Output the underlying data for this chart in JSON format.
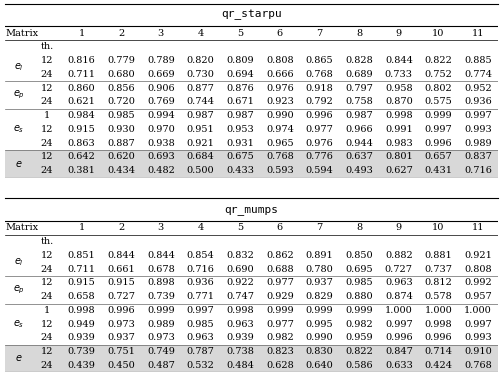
{
  "title1": "qr_starpu",
  "title2": "qr_mumps",
  "col_headers": [
    "Matrix",
    "1",
    "2",
    "3",
    "4",
    "5",
    "6",
    "7",
    "8",
    "9",
    "10",
    "11"
  ],
  "data1": [
    [
      0.816,
      0.779,
      0.789,
      0.82,
      0.809,
      0.808,
      0.865,
      0.828,
      0.844,
      0.822,
      0.885
    ],
    [
      0.711,
      0.68,
      0.669,
      0.73,
      0.694,
      0.666,
      0.768,
      0.689,
      0.733,
      0.752,
      0.774
    ],
    [
      0.86,
      0.856,
      0.906,
      0.877,
      0.876,
      0.976,
      0.918,
      0.797,
      0.958,
      0.802,
      0.952
    ],
    [
      0.621,
      0.72,
      0.769,
      0.744,
      0.671,
      0.923,
      0.792,
      0.758,
      0.87,
      0.575,
      0.936
    ],
    [
      0.984,
      0.985,
      0.994,
      0.987,
      0.987,
      0.99,
      0.996,
      0.987,
      0.998,
      0.999,
      0.997
    ],
    [
      0.915,
      0.93,
      0.97,
      0.951,
      0.953,
      0.974,
      0.977,
      0.966,
      0.991,
      0.997,
      0.993
    ],
    [
      0.863,
      0.887,
      0.938,
      0.921,
      0.931,
      0.965,
      0.976,
      0.944,
      0.983,
      0.996,
      0.989
    ],
    [
      0.642,
      0.62,
      0.693,
      0.684,
      0.675,
      0.768,
      0.776,
      0.637,
      0.801,
      0.657,
      0.837
    ],
    [
      0.381,
      0.434,
      0.482,
      0.5,
      0.433,
      0.593,
      0.594,
      0.493,
      0.627,
      0.431,
      0.716
    ]
  ],
  "data2": [
    [
      0.851,
      0.844,
      0.844,
      0.854,
      0.832,
      0.862,
      0.891,
      0.85,
      0.882,
      0.881,
      0.921
    ],
    [
      0.711,
      0.661,
      0.678,
      0.716,
      0.69,
      0.688,
      0.78,
      0.695,
      0.727,
      0.737,
      0.808
    ],
    [
      0.915,
      0.915,
      0.898,
      0.936,
      0.922,
      0.977,
      0.937,
      0.985,
      0.963,
      0.812,
      0.992
    ],
    [
      0.658,
      0.727,
      0.739,
      0.771,
      0.747,
      0.929,
      0.829,
      0.88,
      0.874,
      0.578,
      0.957
    ],
    [
      0.998,
      0.996,
      0.999,
      0.997,
      0.998,
      0.999,
      0.999,
      0.999,
      1.0,
      1.0,
      1.0
    ],
    [
      0.949,
      0.973,
      0.989,
      0.985,
      0.963,
      0.977,
      0.995,
      0.982,
      0.997,
      0.998,
      0.997
    ],
    [
      0.939,
      0.937,
      0.973,
      0.963,
      0.939,
      0.982,
      0.99,
      0.959,
      0.996,
      0.996,
      0.993
    ],
    [
      0.739,
      0.751,
      0.749,
      0.787,
      0.738,
      0.823,
      0.83,
      0.822,
      0.847,
      0.714,
      0.91
    ],
    [
      0.439,
      0.45,
      0.487,
      0.532,
      0.484,
      0.628,
      0.64,
      0.586,
      0.633,
      0.424,
      0.768
    ]
  ],
  "shaded_rows_1": [
    7,
    8
  ],
  "shaded_rows_2": [
    7,
    8
  ],
  "shade_color": "#d8d8d8",
  "font_size": 7.0,
  "group_labels": [
    "$e_l$",
    "$e_p$",
    "$e_s$",
    "$e$"
  ],
  "group_rows": [
    [
      0,
      1
    ],
    [
      2,
      3
    ],
    [
      4,
      5,
      6
    ],
    [
      7,
      8
    ]
  ],
  "th_labels": [
    [
      "12",
      "24"
    ],
    [
      "12",
      "24"
    ],
    [
      "1",
      "12",
      "24"
    ],
    [
      "12",
      "24"
    ]
  ]
}
